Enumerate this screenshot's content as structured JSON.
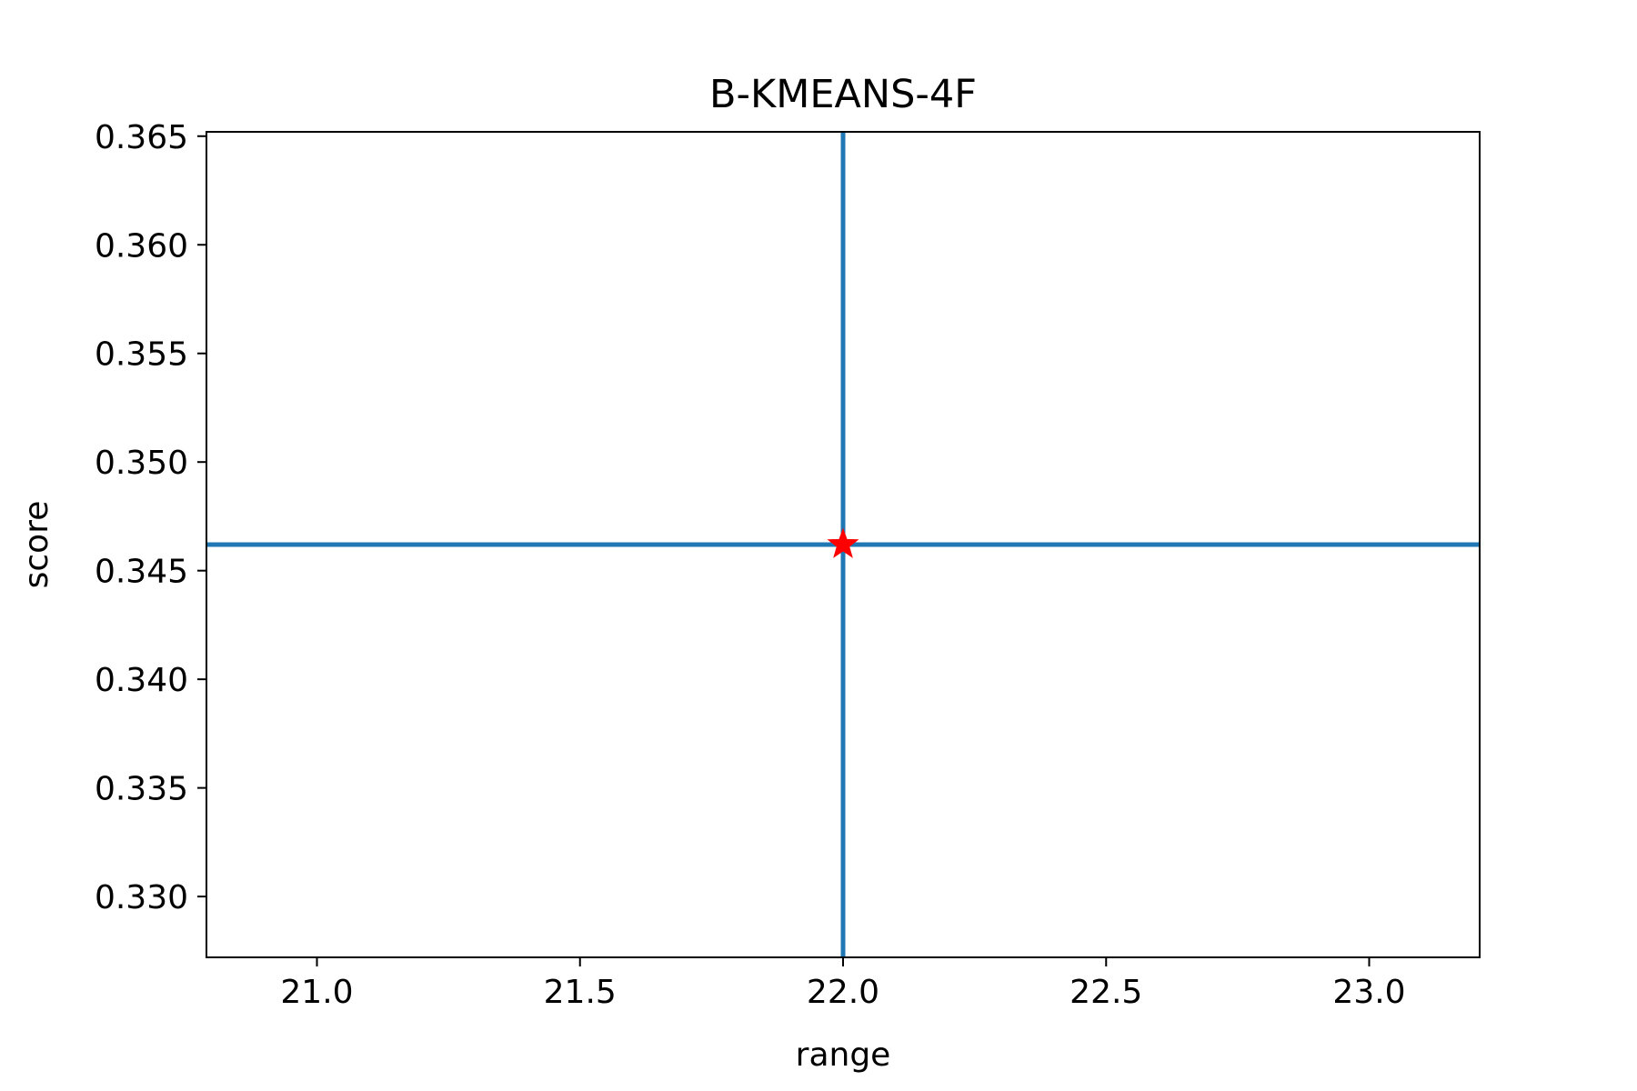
{
  "chart_data": {
    "type": "scatter",
    "title": "B-KMEANS-4F",
    "xlabel": "range",
    "ylabel": "score",
    "xlim": [
      20.79,
      23.21
    ],
    "ylim": [
      0.3272,
      0.3652
    ],
    "xticks": [
      21.0,
      21.5,
      22.0,
      22.5,
      23.0
    ],
    "xtick_labels": [
      "21.0",
      "21.5",
      "22.0",
      "22.5",
      "23.0"
    ],
    "yticks": [
      0.33,
      0.335,
      0.34,
      0.345,
      0.35,
      0.355,
      0.36,
      0.365
    ],
    "ytick_labels": [
      "0.330",
      "0.335",
      "0.340",
      "0.345",
      "0.350",
      "0.355",
      "0.360",
      "0.365"
    ],
    "grid": false,
    "reference_lines": {
      "vertical_x": 22.0,
      "horizontal_y": 0.3462,
      "color": "#1f77b4"
    },
    "points": [
      {
        "x": 22.0,
        "y": 0.3462,
        "marker": "star",
        "color": "#ff0000"
      }
    ]
  }
}
